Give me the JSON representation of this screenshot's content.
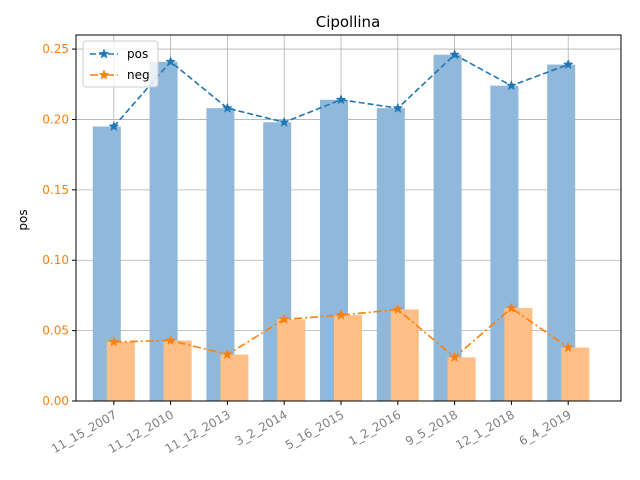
{
  "chart_data": {
    "type": "bar",
    "title": "Cipollina",
    "ylabel": "pos",
    "xlabel": "",
    "categories": [
      "11_15_2007",
      "11_12_2010",
      "11_12_2013",
      "3_2_2014",
      "5_16_2015",
      "1_2_2016",
      "9_5_2018",
      "12_1_2018",
      "6_4_2019"
    ],
    "series": [
      {
        "name": "pos",
        "values": [
          0.195,
          0.241,
          0.208,
          0.198,
          0.214,
          0.208,
          0.246,
          0.224,
          0.239
        ],
        "color": "#1f77b4",
        "bar_color": "#8fb8da",
        "line_style": "dashed",
        "marker": "star"
      },
      {
        "name": "neg",
        "values": [
          0.042,
          0.043,
          0.033,
          0.058,
          0.061,
          0.065,
          0.031,
          0.066,
          0.038
        ],
        "color": "#ff7f0e",
        "bar_color": "#ffbf86",
        "line_style": "dashdot",
        "marker": "star"
      }
    ],
    "ylim": [
      0,
      0.26
    ],
    "yticks": [
      "0.00",
      "0.05",
      "0.10",
      "0.15",
      "0.20",
      "0.25"
    ],
    "grid": true,
    "legend_position": "top-left",
    "ytick_color": "#ff7f0e",
    "xtick_color": "#7f7f7f"
  }
}
